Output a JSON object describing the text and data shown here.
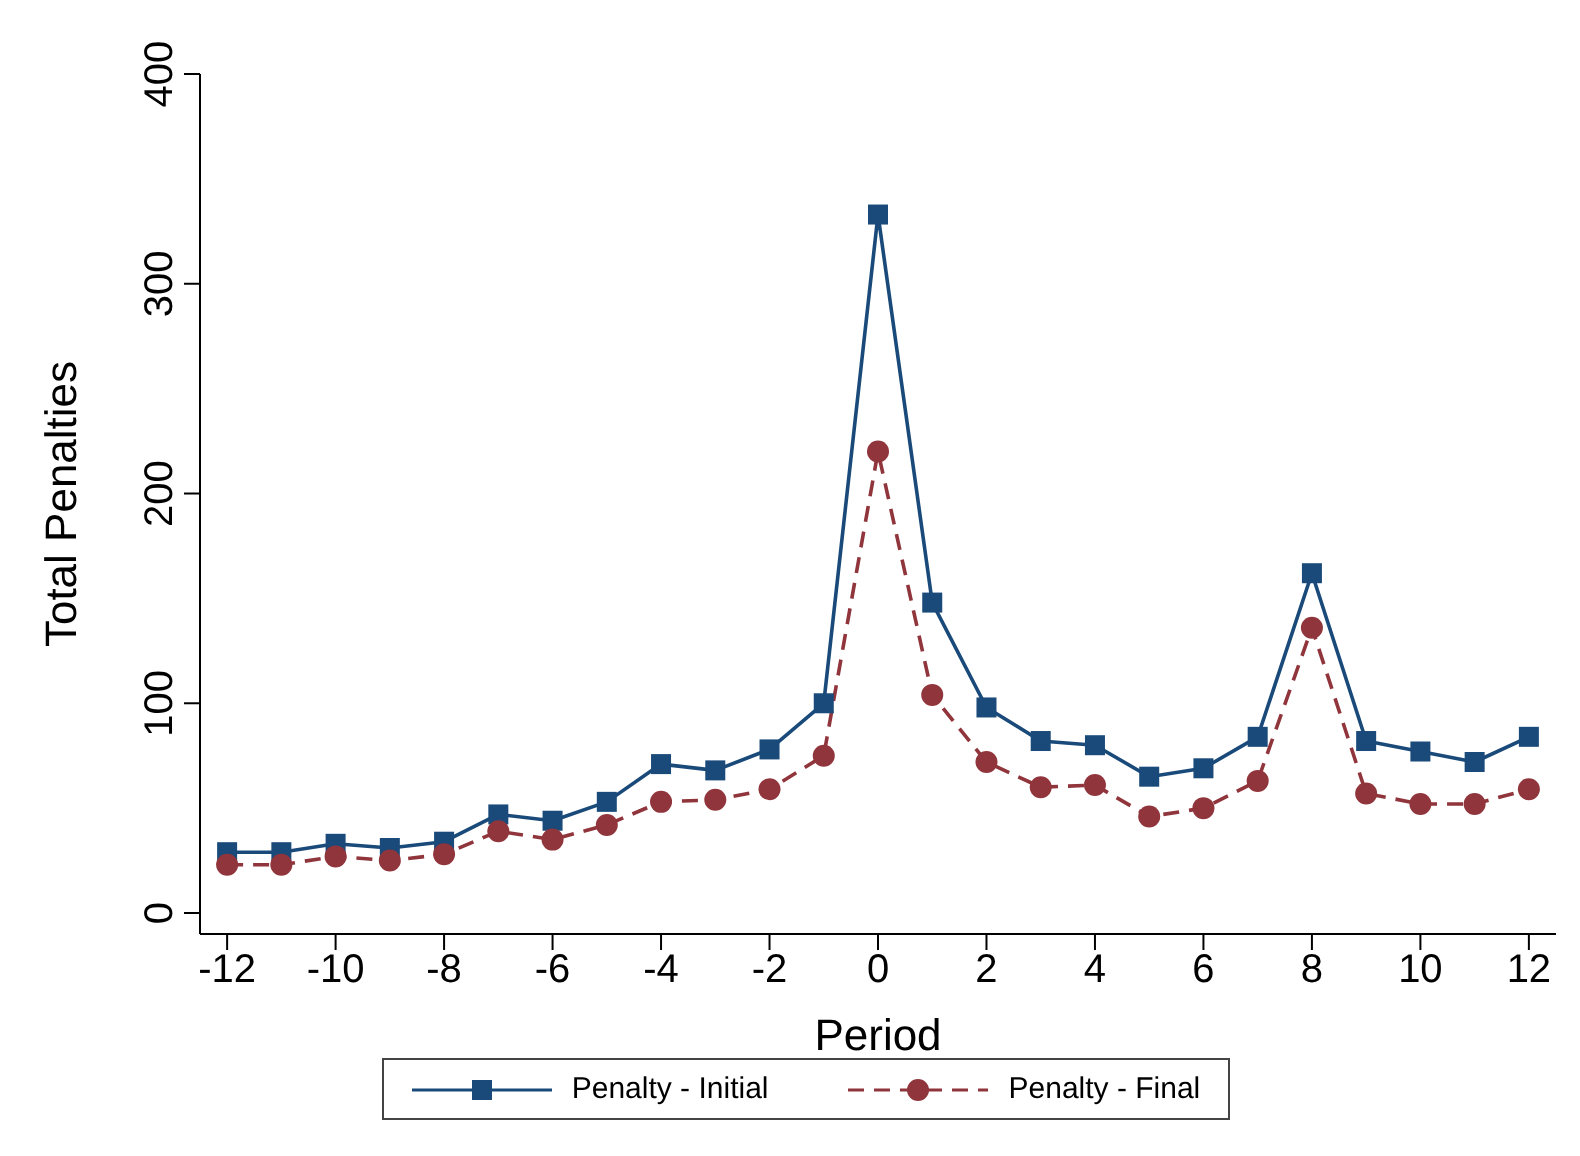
{
  "chart_data": {
    "type": "line",
    "xlabel": "Period",
    "ylabel": "Total Penalties",
    "x": [
      -12,
      -11,
      -10,
      -9,
      -8,
      -7,
      -6,
      -5,
      -4,
      -3,
      -2,
      -1,
      0,
      1,
      2,
      3,
      4,
      5,
      6,
      7,
      8,
      9,
      10,
      11,
      12
    ],
    "series": [
      {
        "name": "Penalty - Initial",
        "color": "#1a4a7a",
        "marker": "square",
        "line_style": "solid",
        "values": [
          29,
          29,
          33,
          31,
          34,
          47,
          44,
          53,
          71,
          68,
          78,
          100,
          333,
          148,
          98,
          82,
          80,
          65,
          69,
          84,
          162,
          82,
          77,
          72,
          84
        ]
      },
      {
        "name": "Penalty - Final",
        "color": "#90353b",
        "marker": "circle",
        "line_style": "dashed",
        "values": [
          23,
          23,
          27,
          25,
          28,
          39,
          35,
          42,
          53,
          54,
          59,
          75,
          220,
          104,
          72,
          60,
          61,
          46,
          50,
          63,
          136,
          57,
          52,
          52,
          59
        ]
      }
    ],
    "xlim": [
      -12.5,
      12.5
    ],
    "xticks": [
      -12,
      -10,
      -8,
      -6,
      -4,
      -2,
      0,
      2,
      4,
      6,
      8,
      10,
      12
    ],
    "ylim": [
      -10,
      400
    ],
    "yticks": [
      0,
      100,
      200,
      300,
      400
    ],
    "grid": false,
    "legend": "bottom"
  }
}
